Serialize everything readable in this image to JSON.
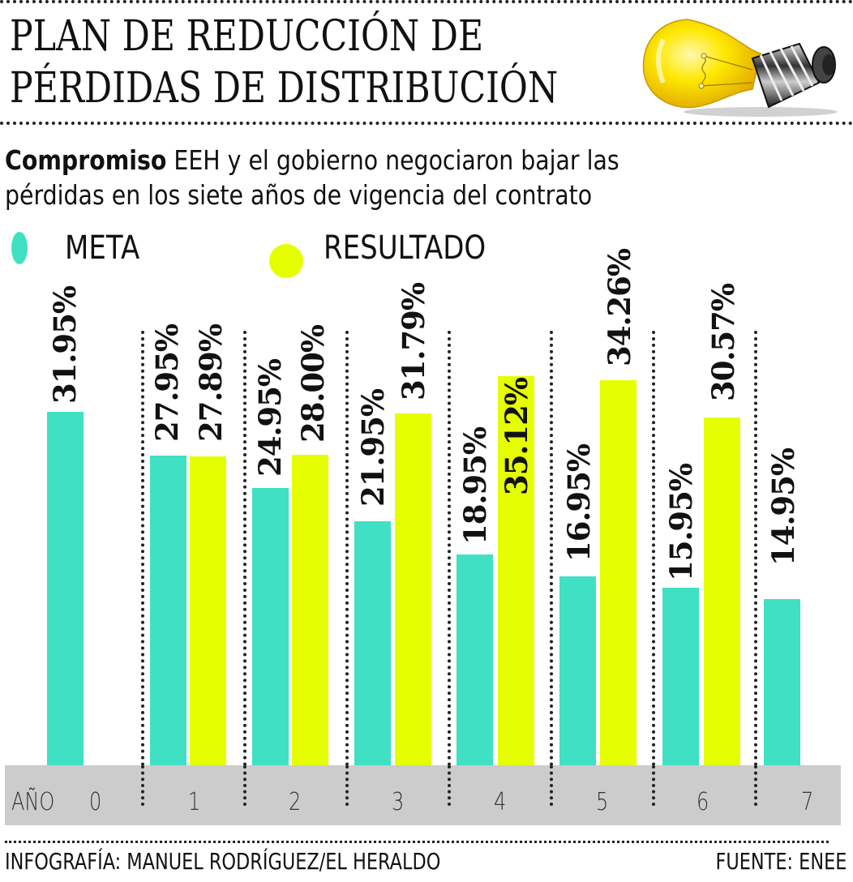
{
  "header": {
    "title_line1": "PLAN DE REDUCCIÓN DE",
    "title_line2": "PÉRDIDAS DE DISTRIBUCIÓN",
    "subtitle_bold": "Compromiso",
    "subtitle_line1_rest": " EEH y el gobierno negociaron bajar las",
    "subtitle_line2": "pérdidas en los siete años de vigencia del contrato",
    "icon": "lightbulb-icon"
  },
  "legend": {
    "meta_label": "META",
    "resultado_label": "RESULTADO",
    "meta_color": "#40E0C4",
    "resultado_color": "#E6FF00"
  },
  "axis": {
    "label": "AÑO",
    "band_color": "#CCCCCC"
  },
  "footer": {
    "credit": "INFOGRAFÍA: MANUEL RODRÍGUEZ/EL HERALDO",
    "source": "FUENTE: ENEE"
  },
  "chart_data": {
    "type": "bar",
    "title": "PLAN DE REDUCCIÓN DE PÉRDIDAS DE DISTRIBUCIÓN",
    "subtitle": "Compromiso EEH y el gobierno negociaron bajar las pérdidas en los siete años de vigencia del contrato",
    "xlabel": "AÑO",
    "ylabel": "",
    "categories": [
      "0",
      "1",
      "2",
      "3",
      "4",
      "5",
      "6",
      "7"
    ],
    "series": [
      {
        "name": "META",
        "color": "#40E0C4",
        "values": [
          31.95,
          27.95,
          24.95,
          21.95,
          18.95,
          16.95,
          15.95,
          14.95
        ],
        "labels": [
          "31.95%",
          "27.95%",
          "24.95%",
          "21.95%",
          "18.95%",
          "16.95%",
          "15.95%",
          "14.95%"
        ]
      },
      {
        "name": "RESULTADO",
        "color": "#E6FF00",
        "values": [
          null,
          27.89,
          28.0,
          31.79,
          35.12,
          34.26,
          30.57,
          null
        ],
        "labels": [
          "",
          "27.89%",
          "28.00%",
          "31.79%",
          "35.12%",
          "34.26%",
          "30.57%",
          ""
        ]
      }
    ],
    "grid": false,
    "legend_position": "top-left",
    "value_labels": "rotated vertical above bars, percent",
    "ylim": [
      0,
      36
    ]
  }
}
